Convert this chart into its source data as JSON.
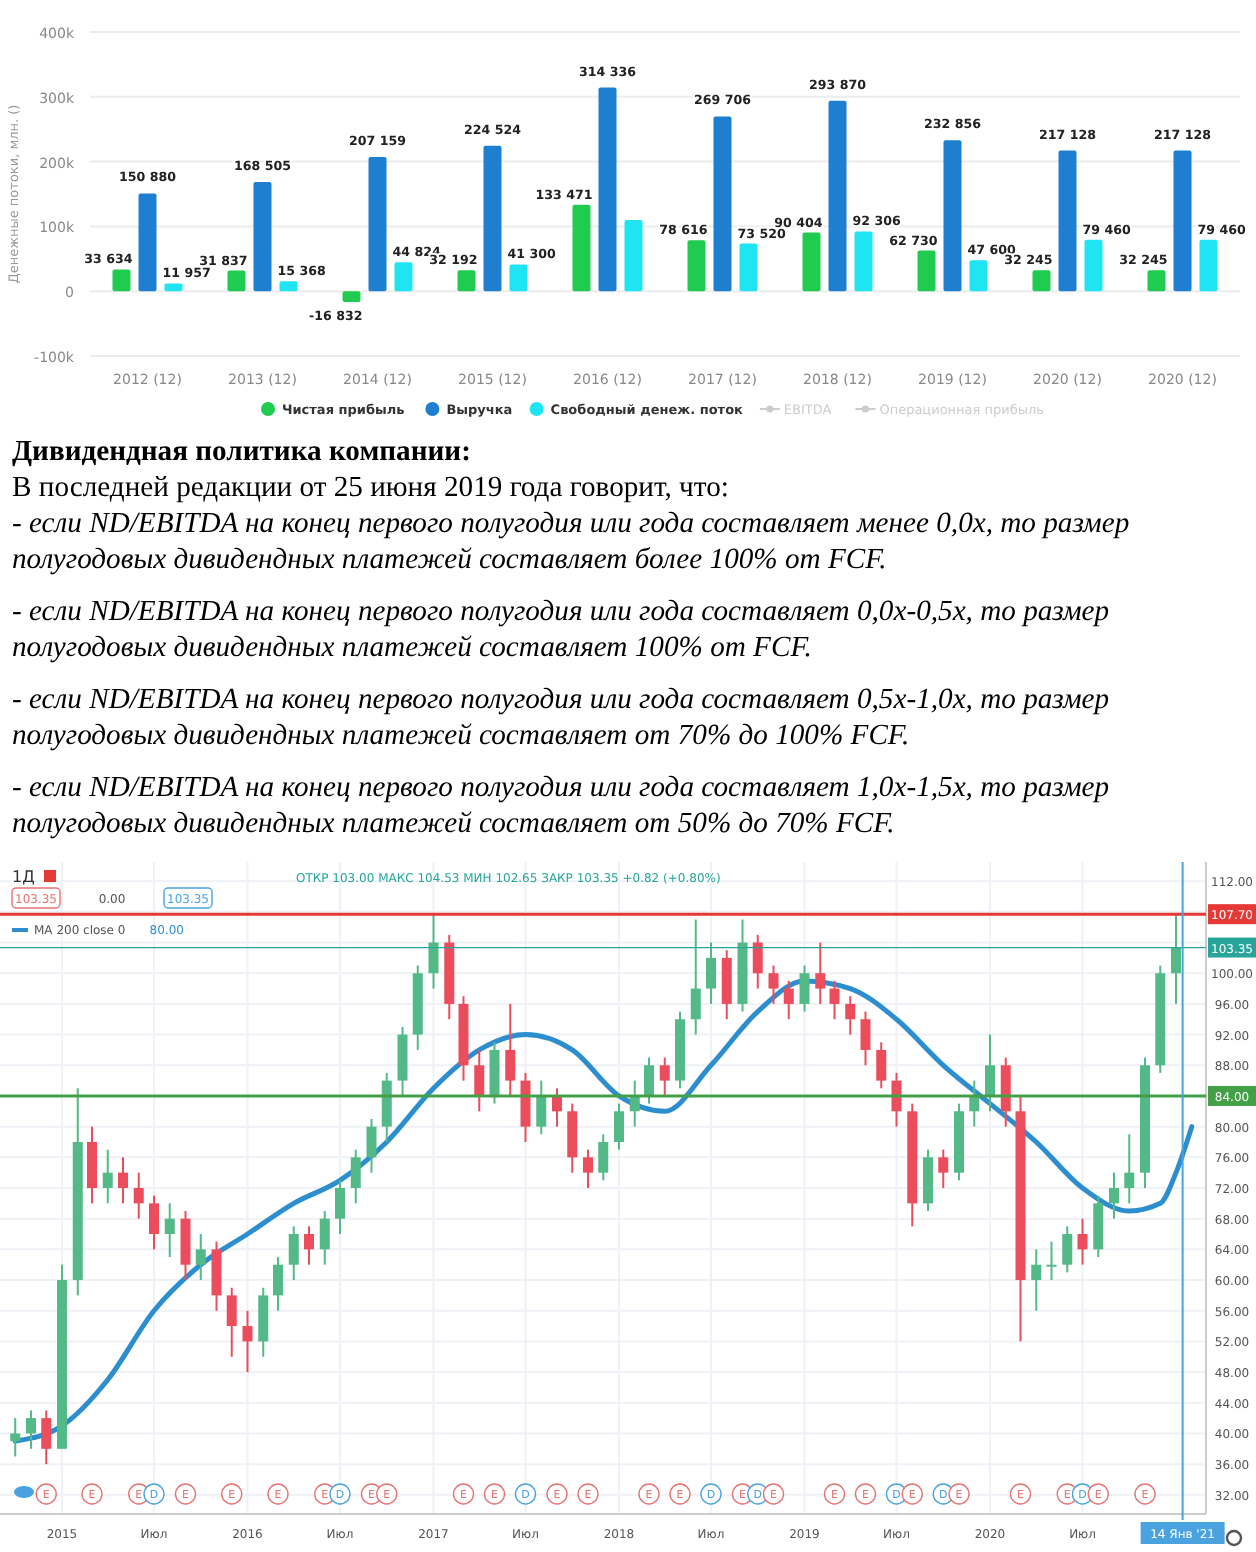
{
  "chart_data": [
    {
      "type": "bar",
      "ylabel": "Денежные потоки, млн. ()",
      "categories": [
        "2012 (12)",
        "2013 (12)",
        "2014 (12)",
        "2015 (12)",
        "2016 (12)",
        "2017 (12)",
        "2018 (12)",
        "2019 (12)",
        "2020 (12)",
        "2020 (12)"
      ],
      "series": [
        {
          "name": "Чистая прибыль",
          "color": "#1fcc4f",
          "values": [
            33634,
            31837,
            -16832,
            32192,
            133471,
            78616,
            90404,
            62730,
            32245,
            32245
          ],
          "value_labels": [
            "33 634",
            "31 837",
            "-16 832",
            "32 192",
            "133 471",
            "78 616",
            "90 404",
            "62 730",
            "32 245",
            "32 245"
          ]
        },
        {
          "name": "Выручка",
          "color": "#1e7fd0",
          "values": [
            150880,
            168505,
            207159,
            224524,
            314336,
            269706,
            293870,
            232856,
            217128,
            217128
          ],
          "value_labels": [
            "150 880",
            "168 505",
            "207 159",
            "224 524",
            "314 336",
            "269 706",
            "293 870",
            "232 856",
            "217 128",
            "217 128"
          ]
        },
        {
          "name": "Свободный денеж. поток",
          "color": "#1fe4f2",
          "values": [
            11957,
            15368,
            44824,
            41300,
            110000,
            73520,
            92306,
            47600,
            79460,
            79460
          ],
          "value_labels": [
            "11 957",
            "15 368",
            "44 824",
            "41 300",
            null,
            "73 520",
            "92 306",
            "47 600",
            "79 460",
            "79 460"
          ]
        },
        {
          "name": "EBITDA",
          "color": "#cccccc",
          "values": [
            null,
            null,
            null,
            null,
            null,
            null,
            null,
            null,
            null,
            null
          ]
        },
        {
          "name": "Операционная прибыль",
          "color": "#cccccc",
          "values": [
            null,
            null,
            null,
            null,
            null,
            null,
            null,
            null,
            null,
            null
          ]
        }
      ],
      "ylim": [
        -100000,
        400000
      ],
      "yticks": [
        {
          "value": -100000,
          "label": "-100k"
        },
        0,
        {
          "value": 100000,
          "label": "100k"
        },
        {
          "value": 200000,
          "label": "200k"
        },
        {
          "value": 300000,
          "label": "300k"
        },
        {
          "value": 400000,
          "label": "400k"
        }
      ],
      "grid": "y",
      "legend": "bottom"
    },
    {
      "type": "other",
      "title": "Дивидендная политика компании:",
      "subtitle": "В последней редакции от 25 июня 2019 года говорит, что:",
      "annotations": [
        "- если ND/EBITDA на конец первого полугодия или года составляет менее 0,0x, то размер полугодовых дивидендных платежей составляет более 100% от FCF.",
        "- если ND/EBITDA на конец первого полугодия или года составляет 0,0x-0,5x, то размер полугодовых дивидендных платежей составляет 100% от FCF.",
        "- если ND/EBITDA на конец первого полугодия или года составляет 0,5x-1,0x, то размер полугодовых дивидендных платежей составляет от 70% до 100%   FCF.",
        "- если ND/EBITDA на конец первого полугодия или года составляет 1,0x-1,5x, то размер полугодовых дивидендных платежей составляет от 50% до 70%   FCF."
      ]
    },
    {
      "type": "candlestick",
      "title": "1Д",
      "x": [
        "2014-10",
        "2014-11",
        "2014-12",
        "2015-01",
        "2015-02",
        "2015-03",
        "2015-04",
        "2015-05",
        "2015-06",
        "2015-07",
        "2015-08",
        "2015-09",
        "2015-10",
        "2015-11",
        "2015-12",
        "2016-01",
        "2016-02",
        "2016-03",
        "2016-04",
        "2016-05",
        "2016-06",
        "2016-07",
        "2016-08",
        "2016-09",
        "2016-10",
        "2016-11",
        "2016-12",
        "2017-01",
        "2017-02",
        "2017-03",
        "2017-04",
        "2017-05",
        "2017-06",
        "2017-07",
        "2017-08",
        "2017-09",
        "2017-10",
        "2017-11",
        "2017-12",
        "2018-01",
        "2018-02",
        "2018-03",
        "2018-04",
        "2018-05",
        "2018-06",
        "2018-07",
        "2018-08",
        "2018-09",
        "2018-10",
        "2018-11",
        "2018-12",
        "2019-01",
        "2019-02",
        "2019-03",
        "2019-04",
        "2019-05",
        "2019-06",
        "2019-07",
        "2019-08",
        "2019-09",
        "2019-10",
        "2019-11",
        "2019-12",
        "2020-01",
        "2020-02",
        "2020-03",
        "2020-04",
        "2020-05",
        "2020-06",
        "2020-07",
        "2020-08",
        "2020-09",
        "2020-10",
        "2020-11",
        "2020-12",
        "2021-01"
      ],
      "ohlc": [
        [
          39,
          42,
          37,
          40
        ],
        [
          40,
          43,
          38,
          42
        ],
        [
          42,
          43,
          36,
          38
        ],
        [
          38,
          62,
          38,
          60
        ],
        [
          60,
          85,
          58,
          78
        ],
        [
          78,
          80,
          70,
          72
        ],
        [
          72,
          77,
          70,
          74
        ],
        [
          74,
          76,
          70,
          72
        ],
        [
          72,
          74,
          68,
          70
        ],
        [
          70,
          71,
          64,
          66
        ],
        [
          66,
          70,
          63,
          68
        ],
        [
          68,
          69,
          60,
          62
        ],
        [
          62,
          66,
          60,
          64
        ],
        [
          64,
          65,
          56,
          58
        ],
        [
          58,
          59,
          50,
          54
        ],
        [
          54,
          56,
          48,
          52
        ],
        [
          52,
          59,
          50,
          58
        ],
        [
          58,
          63,
          56,
          62
        ],
        [
          62,
          67,
          60,
          66
        ],
        [
          66,
          67,
          62,
          64
        ],
        [
          64,
          69,
          62,
          68
        ],
        [
          68,
          73,
          66,
          72
        ],
        [
          72,
          77,
          70,
          76
        ],
        [
          76,
          81,
          74,
          80
        ],
        [
          80,
          87,
          78,
          86
        ],
        [
          86,
          93,
          84,
          92
        ],
        [
          92,
          101,
          90,
          100
        ],
        [
          100,
          107.7,
          98,
          104
        ],
        [
          104,
          105,
          94,
          96
        ],
        [
          96,
          97,
          86,
          88
        ],
        [
          88,
          90,
          82,
          84
        ],
        [
          84,
          91,
          83,
          90
        ],
        [
          90,
          96,
          84,
          86
        ],
        [
          86,
          87,
          78,
          80
        ],
        [
          80,
          86,
          79,
          84
        ],
        [
          84,
          85,
          80,
          82
        ],
        [
          82,
          83,
          74,
          76
        ],
        [
          76,
          77,
          72,
          74
        ],
        [
          74,
          79,
          73,
          78
        ],
        [
          78,
          83,
          77,
          82
        ],
        [
          82,
          86,
          80,
          84
        ],
        [
          84,
          89,
          83,
          88
        ],
        [
          88,
          89,
          84,
          86
        ],
        [
          86,
          95,
          85,
          94
        ],
        [
          94,
          107,
          92,
          98
        ],
        [
          98,
          104,
          96,
          102
        ],
        [
          102,
          103,
          94,
          96
        ],
        [
          96,
          107,
          95,
          104
        ],
        [
          104,
          105,
          98,
          100
        ],
        [
          100,
          101,
          96,
          98
        ],
        [
          98,
          99,
          94,
          96
        ],
        [
          96,
          101,
          95,
          100
        ],
        [
          100,
          104,
          96,
          98
        ],
        [
          98,
          99,
          94,
          96
        ],
        [
          96,
          97,
          92,
          94
        ],
        [
          94,
          95,
          88,
          90
        ],
        [
          90,
          91,
          85,
          86
        ],
        [
          86,
          87,
          80,
          82
        ],
        [
          82,
          83,
          67,
          70
        ],
        [
          70,
          77,
          69,
          76
        ],
        [
          76,
          77,
          72,
          74
        ],
        [
          74,
          83,
          73,
          82
        ],
        [
          82,
          86,
          80,
          84
        ],
        [
          84,
          92,
          82,
          88
        ],
        [
          88,
          89,
          80,
          82
        ],
        [
          82,
          84,
          52,
          60
        ],
        [
          60,
          64,
          56,
          62
        ],
        [
          62,
          65,
          60,
          62
        ],
        [
          62,
          67,
          61,
          66
        ],
        [
          66,
          68,
          62,
          64
        ],
        [
          64,
          71,
          63,
          70
        ],
        [
          70,
          74,
          68,
          72
        ],
        [
          72,
          79,
          70,
          74
        ],
        [
          74,
          89,
          72,
          88
        ],
        [
          88,
          101,
          87,
          100
        ],
        [
          100,
          107.7,
          96,
          103.35
        ]
      ],
      "series": [
        {
          "type": "line",
          "name": "MA 200 close 0",
          "color": "#2d8ecf",
          "x": [
            "2014-10",
            "2015-01",
            "2015-04",
            "2015-07",
            "2015-10",
            "2016-01",
            "2016-04",
            "2016-07",
            "2016-10",
            "2017-01",
            "2017-04",
            "2017-07",
            "2017-10",
            "2018-01",
            "2018-04",
            "2018-07",
            "2018-10",
            "2019-01",
            "2019-04",
            "2019-07",
            "2019-10",
            "2020-01",
            "2020-04",
            "2020-07",
            "2020-10",
            "2020-12",
            "2021-01",
            "2021-02"
          ],
          "values": [
            39,
            41,
            47,
            56,
            62,
            66,
            70,
            73,
            78,
            85,
            90,
            92,
            90,
            84,
            82,
            88,
            95,
            99,
            98,
            94,
            88,
            83,
            78,
            72,
            69,
            70,
            74,
            80
          ]
        }
      ],
      "xlim": [
        "2014-09",
        "2021-03"
      ],
      "xticks": [
        {
          "value": "2015-01",
          "label": "2015"
        },
        {
          "value": "2015-07",
          "label": "Июл"
        },
        {
          "value": "2016-01",
          "label": "2016"
        },
        {
          "value": "2016-07",
          "label": "Июл"
        },
        {
          "value": "2017-01",
          "label": "2017"
        },
        {
          "value": "2017-07",
          "label": "Июл"
        },
        {
          "value": "2018-01",
          "label": "2018"
        },
        {
          "value": "2018-07",
          "label": "Июл"
        },
        {
          "value": "2019-01",
          "label": "2019"
        },
        {
          "value": "2019-07",
          "label": "Июл"
        },
        {
          "value": "2020-01",
          "label": "2020"
        },
        {
          "value": "2020-07",
          "label": "Июл"
        }
      ],
      "ylim": [
        29.5,
        114.5
      ],
      "yticks": [
        {
          "value": 32,
          "label": "32.00"
        },
        {
          "value": 36,
          "label": "36.00"
        },
        {
          "value": 40,
          "label": "40.00"
        },
        {
          "value": 44,
          "label": "44.00"
        },
        {
          "value": 48,
          "label": "48.00"
        },
        {
          "value": 52,
          "label": "52.00"
        },
        {
          "value": 56,
          "label": "56.00"
        },
        {
          "value": 60,
          "label": "60.00"
        },
        {
          "value": 64,
          "label": "64.00"
        },
        {
          "value": 68,
          "label": "68.00"
        },
        {
          "value": 72,
          "label": "72.00"
        },
        {
          "value": 76,
          "label": "76.00"
        },
        {
          "value": 80,
          "label": "80.00"
        },
        {
          "value": 84,
          "label": null
        },
        {
          "value": 88,
          "label": "88.00"
        },
        {
          "value": 92,
          "label": "92.00"
        },
        {
          "value": 96,
          "label": "96.00"
        },
        {
          "value": 100,
          "label": "100.00"
        },
        {
          "value": 104,
          "label": null
        },
        {
          "value": 108,
          "label": null
        },
        {
          "value": 112,
          "label": "112.00"
        }
      ],
      "ref_lines": [
        {
          "axis": "y",
          "value": 107.7,
          "label": "107.70",
          "color": "#e53935"
        },
        {
          "axis": "y",
          "value": 84,
          "label": "84.00",
          "color": "#43a047"
        },
        {
          "axis": "y",
          "value": 103.35,
          "label": "103.35",
          "color": "#26a69a"
        },
        {
          "axis": "x",
          "value": "2021-01-14",
          "label": "14 Янв '21",
          "color": "#4aa3df"
        }
      ],
      "grid": true,
      "legend": "top left",
      "annotations": [
        "ОТКР 103.00 МАКС 104.53 МИН 102.65 ЗАКР 103.35 +0.82 (+0.80%)",
        "103.35",
        "0.00",
        "103.35",
        "80.00",
        {
          "text": "E",
          "x": "2014-12"
        },
        {
          "text": "E",
          "x": "2015-03"
        },
        {
          "text": "E",
          "x": "2015-06"
        },
        {
          "text": "D",
          "x": "2015-07"
        },
        {
          "text": "E",
          "x": "2015-09"
        },
        {
          "text": "E",
          "x": "2015-12"
        },
        {
          "text": "E",
          "x": "2016-03"
        },
        {
          "text": "E",
          "x": "2016-06"
        },
        {
          "text": "D",
          "x": "2016-07"
        },
        {
          "text": "E",
          "x": "2016-09"
        },
        {
          "text": "E",
          "x": "2016-10"
        },
        {
          "text": "E",
          "x": "2017-03"
        },
        {
          "text": "E",
          "x": "2017-05"
        },
        {
          "text": "D",
          "x": "2017-07"
        },
        {
          "text": "E",
          "x": "2017-09"
        },
        {
          "text": "E",
          "x": "2017-11"
        },
        {
          "text": "E",
          "x": "2018-03"
        },
        {
          "text": "E",
          "x": "2018-05"
        },
        {
          "text": "D",
          "x": "2018-07"
        },
        {
          "text": "E",
          "x": "2018-09"
        },
        {
          "text": "D",
          "x": "2018-10"
        },
        {
          "text": "E",
          "x": "2018-11"
        },
        {
          "text": "E",
          "x": "2019-03"
        },
        {
          "text": "E",
          "x": "2019-05"
        },
        {
          "text": "D",
          "x": "2019-07"
        },
        {
          "text": "E",
          "x": "2019-08"
        },
        {
          "text": "D",
          "x": "2019-10"
        },
        {
          "text": "E",
          "x": "2019-11"
        },
        {
          "text": "E",
          "x": "2020-03"
        },
        {
          "text": "E",
          "x": "2020-06"
        },
        {
          "text": "D",
          "x": "2020-07"
        },
        {
          "text": "E",
          "x": "2020-08"
        },
        {
          "text": "E",
          "x": "2020-11"
        }
      ]
    }
  ]
}
